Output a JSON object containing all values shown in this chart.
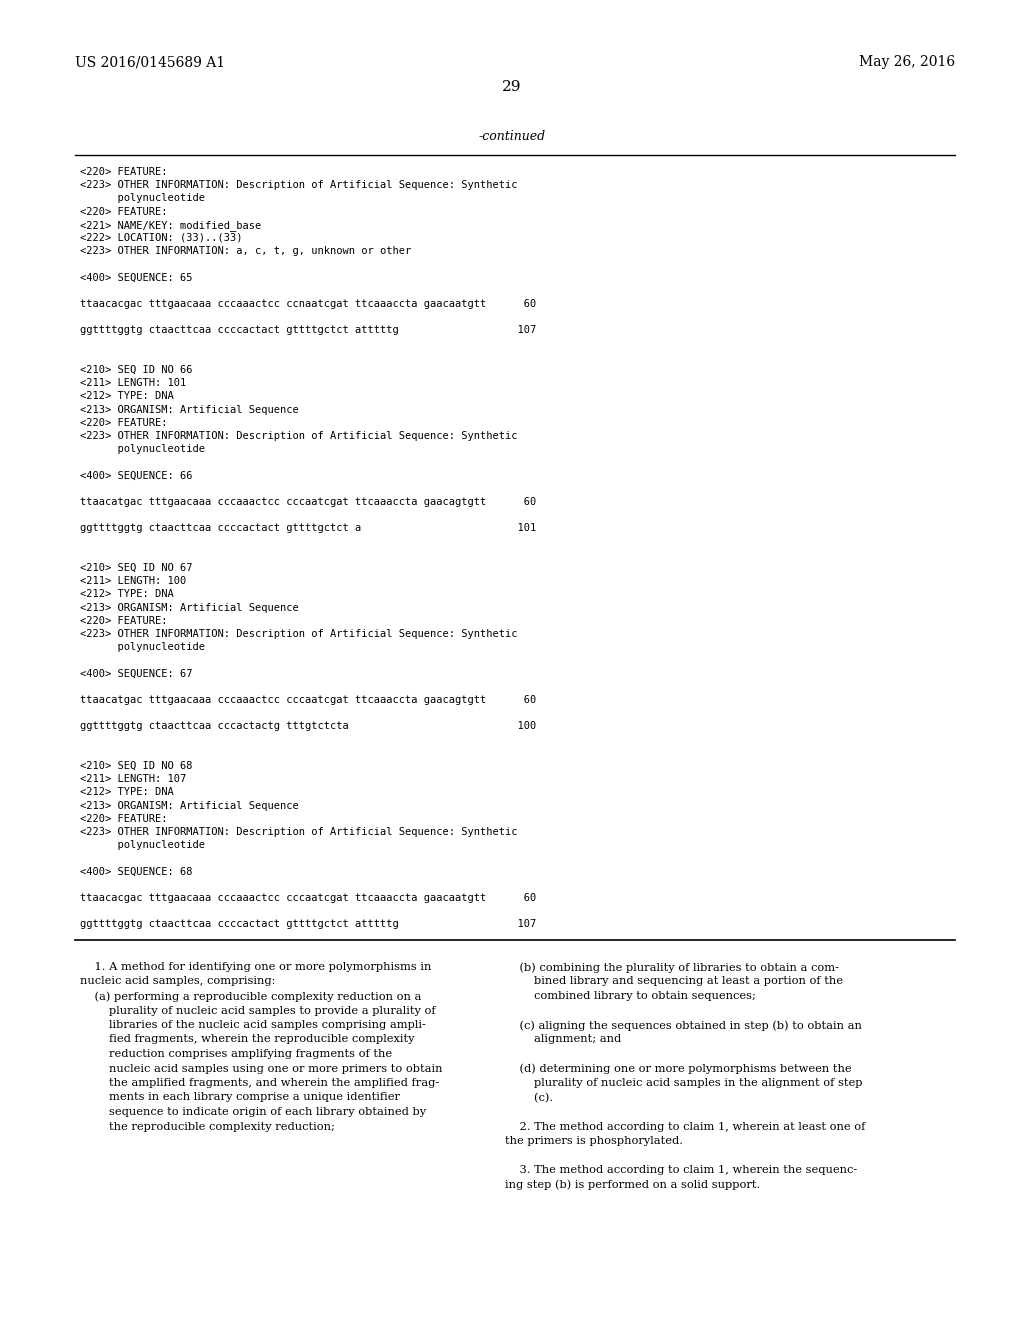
{
  "bg_color": "#ffffff",
  "header_left": "US 2016/0145689 A1",
  "header_right": "May 26, 2016",
  "page_number": "29",
  "continued_label": "-continued",
  "monospace_lines": [
    "<220> FEATURE:",
    "<223> OTHER INFORMATION: Description of Artificial Sequence: Synthetic",
    "      polynucleotide",
    "<220> FEATURE:",
    "<221> NAME/KEY: modified_base",
    "<222> LOCATION: (33)..(33)",
    "<223> OTHER INFORMATION: a, c, t, g, unknown or other",
    "",
    "<400> SEQUENCE: 65",
    "",
    "ttaacacgac tttgaacaaa cccaaactcc ccnaatcgat ttcaaaccta gaacaatgtt      60",
    "",
    "ggttttggtg ctaacttcaa ccccactact gttttgctct atttttg                   107",
    "",
    "",
    "<210> SEQ ID NO 66",
    "<211> LENGTH: 101",
    "<212> TYPE: DNA",
    "<213> ORGANISM: Artificial Sequence",
    "<220> FEATURE:",
    "<223> OTHER INFORMATION: Description of Artificial Sequence: Synthetic",
    "      polynucleotide",
    "",
    "<400> SEQUENCE: 66",
    "",
    "ttaacatgac tttgaacaaa cccaaactcc cccaatcgat ttcaaaccta gaacagtgtt      60",
    "",
    "ggttttggtg ctaacttcaa ccccactact gttttgctct a                         101",
    "",
    "",
    "<210> SEQ ID NO 67",
    "<211> LENGTH: 100",
    "<212> TYPE: DNA",
    "<213> ORGANISM: Artificial Sequence",
    "<220> FEATURE:",
    "<223> OTHER INFORMATION: Description of Artificial Sequence: Synthetic",
    "      polynucleotide",
    "",
    "<400> SEQUENCE: 67",
    "",
    "ttaacatgac tttgaacaaa cccaaactcc cccaatcgat ttcaaaccta gaacagtgtt      60",
    "",
    "ggttttggtg ctaacttcaa cccactactg tttgtctcta                           100",
    "",
    "",
    "<210> SEQ ID NO 68",
    "<211> LENGTH: 107",
    "<212> TYPE: DNA",
    "<213> ORGANISM: Artificial Sequence",
    "<220> FEATURE:",
    "<223> OTHER INFORMATION: Description of Artificial Sequence: Synthetic",
    "      polynucleotide",
    "",
    "<400> SEQUENCE: 68",
    "",
    "ttaacacgac tttgaacaaa cccaaactcc cccaatcgat ttcaaaccta gaacaatgtt      60",
    "",
    "ggttttggtg ctaacttcaa ccccactact gttttgctct atttttg                   107"
  ],
  "claims_col1": [
    {
      "text": "    ±1. A method for identifying one or more polymorphisms in",
      "bold_prefix": "1"
    },
    {
      "text": "nucleic acid samples, comprising:",
      "bold_prefix": ""
    },
    {
      "text": "    (a) performing a reproducible complexity reduction on a",
      "bold_prefix": ""
    },
    {
      "text": "        plurality of nucleic acid samples to provide a plurality of",
      "bold_prefix": ""
    },
    {
      "text": "        libraries of the nucleic acid samples comprising ampli-",
      "bold_prefix": ""
    },
    {
      "text": "        fied fragments, wherein the reproducible complexity",
      "bold_prefix": ""
    },
    {
      "text": "        reduction comprises amplifying fragments of the",
      "bold_prefix": ""
    },
    {
      "text": "        nucleic acid samples using one or more primers to obtain",
      "bold_prefix": ""
    },
    {
      "text": "        the amplified fragments, and wherein the amplified frag-",
      "bold_prefix": ""
    },
    {
      "text": "        ments in each library comprise a unique identifier",
      "bold_prefix": ""
    },
    {
      "text": "        sequence to indicate origin of each library obtained by",
      "bold_prefix": ""
    },
    {
      "text": "        the reproducible complexity reduction;",
      "bold_prefix": ""
    }
  ],
  "claims_col1_plain": [
    "    1. A method for identifying one or more polymorphisms in",
    "nucleic acid samples, comprising:",
    "    (a) performing a reproducible complexity reduction on a",
    "        plurality of nucleic acid samples to provide a plurality of",
    "        libraries of the nucleic acid samples comprising ampli-",
    "        fied fragments, wherein the reproducible complexity",
    "        reduction comprises amplifying fragments of the",
    "        nucleic acid samples using one or more primers to obtain",
    "        the amplified fragments, and wherein the amplified frag-",
    "        ments in each library comprise a unique identifier",
    "        sequence to indicate origin of each library obtained by",
    "        the reproducible complexity reduction;"
  ],
  "claims_col2_plain": [
    "    (b) combining the plurality of libraries to obtain a com-",
    "        bined library and sequencing at least a portion of the",
    "        combined library to obtain sequences;",
    "",
    "    (c) aligning the sequences obtained in step (b) to obtain an",
    "        alignment; and",
    "",
    "    (d) determining one or more polymorphisms between the",
    "        plurality of nucleic acid samples in the alignment of step",
    "        (c).",
    "",
    "    2. The method according to claim 1, wherein at least one of",
    "the primers is phosphorylated.",
    "",
    "    3. The method according to claim 1, wherein the sequenc-",
    "ing step (b) is performed on a solid support."
  ]
}
